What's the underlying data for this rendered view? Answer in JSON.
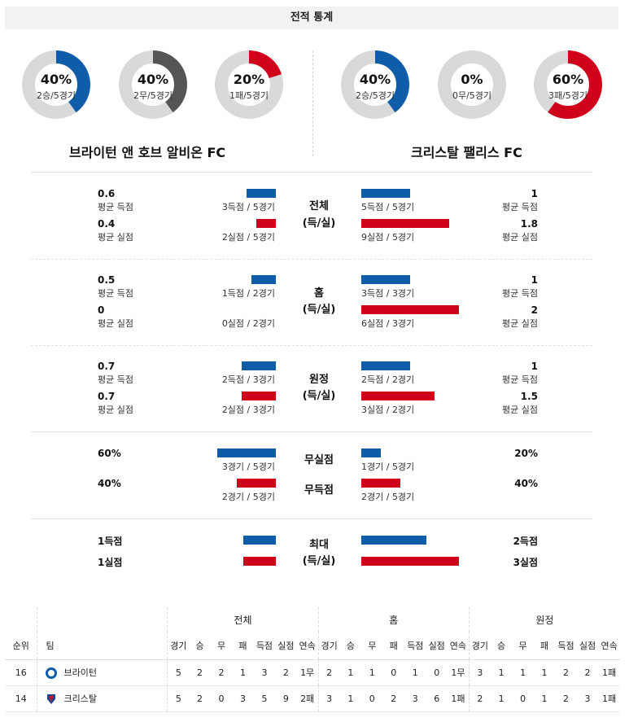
{
  "header": {
    "title": "전적 통계"
  },
  "home": {
    "name": "브라이턴 앤 호브 알비온 FC",
    "donuts": [
      {
        "pct_label": "40%",
        "sub": "2승/5경기",
        "value": 0.4,
        "color": "#0f5da8"
      },
      {
        "pct_label": "40%",
        "sub": "2무/5경기",
        "value": 0.4,
        "color": "#555555"
      },
      {
        "pct_label": "20%",
        "sub": "1패/5경기",
        "value": 0.2,
        "color": "#d0021b"
      }
    ]
  },
  "away": {
    "name": "크리스탈 팰리스 FC",
    "donuts": [
      {
        "pct_label": "40%",
        "sub": "2승/5경기",
        "value": 0.4,
        "color": "#0f5da8"
      },
      {
        "pct_label": "0%",
        "sub": "0무/5경기",
        "value": 0.0,
        "color": "#555555"
      },
      {
        "pct_label": "60%",
        "sub": "3패/5경기",
        "value": 0.6,
        "color": "#d0021b"
      }
    ]
  },
  "sections": [
    {
      "label1": "전체",
      "label2": "(득/실)",
      "home": {
        "scored_avg": "0.6",
        "scored_avg_label": "평균 득점",
        "scored_detail": "3득점 / 5경기",
        "scored_value": 0.6,
        "conceded_avg": "0.4",
        "conceded_avg_label": "평균 실점",
        "conceded_detail": "2실점 / 5경기",
        "conceded_value": 0.4
      },
      "away": {
        "scored_avg": "1",
        "scored_avg_label": "평균 득점",
        "scored_detail": "5득점 / 5경기",
        "scored_value": 1,
        "conceded_avg": "1.8",
        "conceded_avg_label": "평균 실점",
        "conceded_detail": "9실점 / 5경기",
        "conceded_value": 1.8
      }
    },
    {
      "label1": "홈",
      "label2": "(득/실)",
      "home": {
        "scored_avg": "0.5",
        "scored_avg_label": "평균 득점",
        "scored_detail": "1득점 / 2경기",
        "scored_value": 0.5,
        "conceded_avg": "0",
        "conceded_avg_label": "평균 실점",
        "conceded_detail": "0실점 / 2경기",
        "conceded_value": 0
      },
      "away": {
        "scored_avg": "1",
        "scored_avg_label": "평균 득점",
        "scored_detail": "3득점 / 3경기",
        "scored_value": 1,
        "conceded_avg": "2",
        "conceded_avg_label": "평균 실점",
        "conceded_detail": "6실점 / 3경기",
        "conceded_value": 2
      }
    },
    {
      "label1": "원정",
      "label2": "(득/실)",
      "home": {
        "scored_avg": "0.7",
        "scored_avg_label": "평균 득점",
        "scored_detail": "2득점 / 3경기",
        "scored_value": 0.7,
        "conceded_avg": "0.7",
        "conceded_avg_label": "평균 실점",
        "conceded_detail": "2실점 / 3경기",
        "conceded_value": 0.7
      },
      "away": {
        "scored_avg": "1",
        "scored_avg_label": "평균 득점",
        "scored_detail": "2득점 / 2경기",
        "scored_value": 1,
        "conceded_avg": "1.5",
        "conceded_avg_label": "평균 실점",
        "conceded_detail": "3실점 / 2경기",
        "conceded_value": 1.5
      }
    }
  ],
  "clean": {
    "clean_label": "무실점",
    "noscore_label": "무득점",
    "home": {
      "clean_pct": "60%",
      "clean_detail": "3경기 / 5경기",
      "clean_value": 0.6,
      "noscore_pct": "40%",
      "noscore_detail": "2경기 / 5경기",
      "noscore_value": 0.4
    },
    "away": {
      "clean_pct": "20%",
      "clean_detail": "1경기 / 5경기",
      "clean_value": 0.2,
      "noscore_pct": "40%",
      "noscore_detail": "2경기 / 5경기",
      "noscore_value": 0.4
    }
  },
  "max": {
    "label1": "최대",
    "label2": "(득/실)",
    "home": {
      "scored": "1득점",
      "scored_value": 1,
      "conceded": "1실점",
      "conceded_value": 1
    },
    "away": {
      "scored": "2득점",
      "scored_value": 2,
      "conceded": "3실점",
      "conceded_value": 3
    }
  },
  "table": {
    "group_headers": [
      "전체",
      "홈",
      "원정"
    ],
    "rank_header": "순위",
    "team_header": "팀",
    "sub_headers": [
      "경기",
      "승",
      "무",
      "패",
      "득점",
      "실점",
      "연속"
    ],
    "rows": [
      {
        "rank": "16",
        "team": "브라이턴",
        "icon": "brighton-crest-icon",
        "total": [
          "5",
          "2",
          "2",
          "1",
          "3",
          "2",
          "1무"
        ],
        "home": [
          "2",
          "1",
          "1",
          "0",
          "1",
          "0",
          "1무"
        ],
        "away": [
          "3",
          "1",
          "1",
          "1",
          "2",
          "2",
          "1패"
        ]
      },
      {
        "rank": "14",
        "team": "크리스탈",
        "icon": "crystal-palace-crest-icon",
        "total": [
          "5",
          "2",
          "0",
          "3",
          "5",
          "9",
          "2패"
        ],
        "home": [
          "3",
          "1",
          "0",
          "2",
          "3",
          "6",
          "1패"
        ],
        "away": [
          "2",
          "1",
          "0",
          "1",
          "2",
          "3",
          "1패"
        ]
      }
    ]
  },
  "colors": {
    "blue": "#0f5da8",
    "red": "#d0021b",
    "gray": "#555555",
    "track": "#d9d9d9"
  }
}
